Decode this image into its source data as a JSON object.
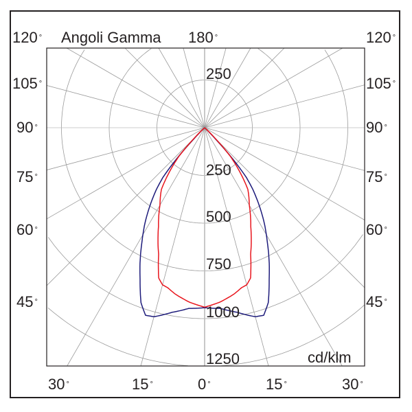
{
  "chart_data": {
    "type": "polar",
    "title": "Angoli Gamma",
    "unit_label": "cd/klm",
    "top_angle_label": "180",
    "degree_symbol": "°",
    "side_angle_labels": [
      "120",
      "105",
      "90",
      "75",
      "60",
      "45"
    ],
    "bottom_angle_labels": [
      "30",
      "15",
      "0",
      "15",
      "30"
    ],
    "radial_labels_upper": [
      "250"
    ],
    "radial_labels_lower": [
      "250",
      "500",
      "750",
      "1000",
      "1250"
    ],
    "radial_step": 250,
    "angle_step_deg": 15,
    "grid": true,
    "series": [
      {
        "color": "#1c1a7a",
        "gamma": [
          0,
          5,
          10,
          15,
          17.5,
          20,
          23,
          26,
          29,
          32,
          35,
          38,
          40,
          42,
          44,
          46,
          50,
          90
        ],
        "values": [
          943,
          950,
          982,
          1025,
          1030,
          975,
          865,
          770,
          675,
          590,
          500,
          410,
          340,
          220,
          80,
          15,
          0,
          0
        ]
      },
      {
        "color": "#e8141c",
        "gamma": [
          0,
          5,
          10,
          13,
          15,
          17,
          20,
          25,
          30,
          35,
          38.6,
          42,
          45,
          48,
          50,
          90
        ],
        "values": [
          940,
          917,
          885,
          860,
          852,
          823,
          705,
          572,
          468,
          395,
          294,
          200,
          70,
          10,
          0,
          0
        ]
      }
    ]
  }
}
